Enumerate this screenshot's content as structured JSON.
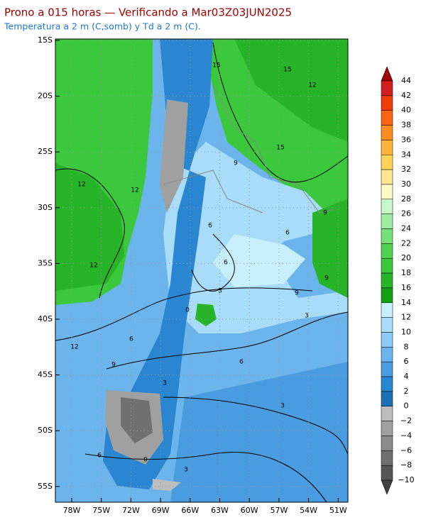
{
  "header": {
    "title": "Prono a 015 horas — Verificando a Mar03Z03JUN2025",
    "subtitle": "Temperatura a 2 m (C,somb) y Td a 2 m (C)."
  },
  "map": {
    "lat_labels": [
      "15S",
      "20S",
      "25S",
      "30S",
      "35S",
      "40S",
      "45S",
      "50S",
      "55S"
    ],
    "lon_labels": [
      "78W",
      "75W",
      "72W",
      "69W",
      "66W",
      "63W",
      "60W",
      "57W",
      "54W",
      "51W"
    ],
    "contour_labels": [
      "15",
      "15",
      "12",
      "15",
      "9",
      "12",
      "12",
      "6",
      "6",
      "9",
      "12",
      "6",
      "3",
      "9",
      "9",
      "0",
      "3",
      "12",
      "6",
      "9",
      "6",
      "3",
      "3",
      "0",
      "6",
      "3"
    ]
  },
  "colorbar": {
    "labels": [
      "44",
      "42",
      "40",
      "38",
      "36",
      "34",
      "32",
      "30",
      "28",
      "26",
      "24",
      "22",
      "20",
      "18",
      "16",
      "14",
      "12",
      "10",
      "8",
      "6",
      "4",
      "2",
      "0",
      "−2",
      "−4",
      "−6",
      "−8",
      "−10"
    ],
    "colors": [
      "#a00000",
      "#d21e1e",
      "#f03c0a",
      "#ff6414",
      "#ff8c1e",
      "#ffb43c",
      "#ffd25a",
      "#ffe68c",
      "#fffac8",
      "#c8f8c8",
      "#a0eca0",
      "#78e078",
      "#50d250",
      "#3cc83c",
      "#28b428",
      "#14a014",
      "#c8f0fc",
      "#a8dcf8",
      "#8ccbf4",
      "#6cb4ec",
      "#4a9ce0",
      "#2a86d0",
      "#1e6eb4",
      "#bebebe",
      "#a0a0a0",
      "#8a8a8a",
      "#707070",
      "#555555",
      "#404040"
    ]
  }
}
